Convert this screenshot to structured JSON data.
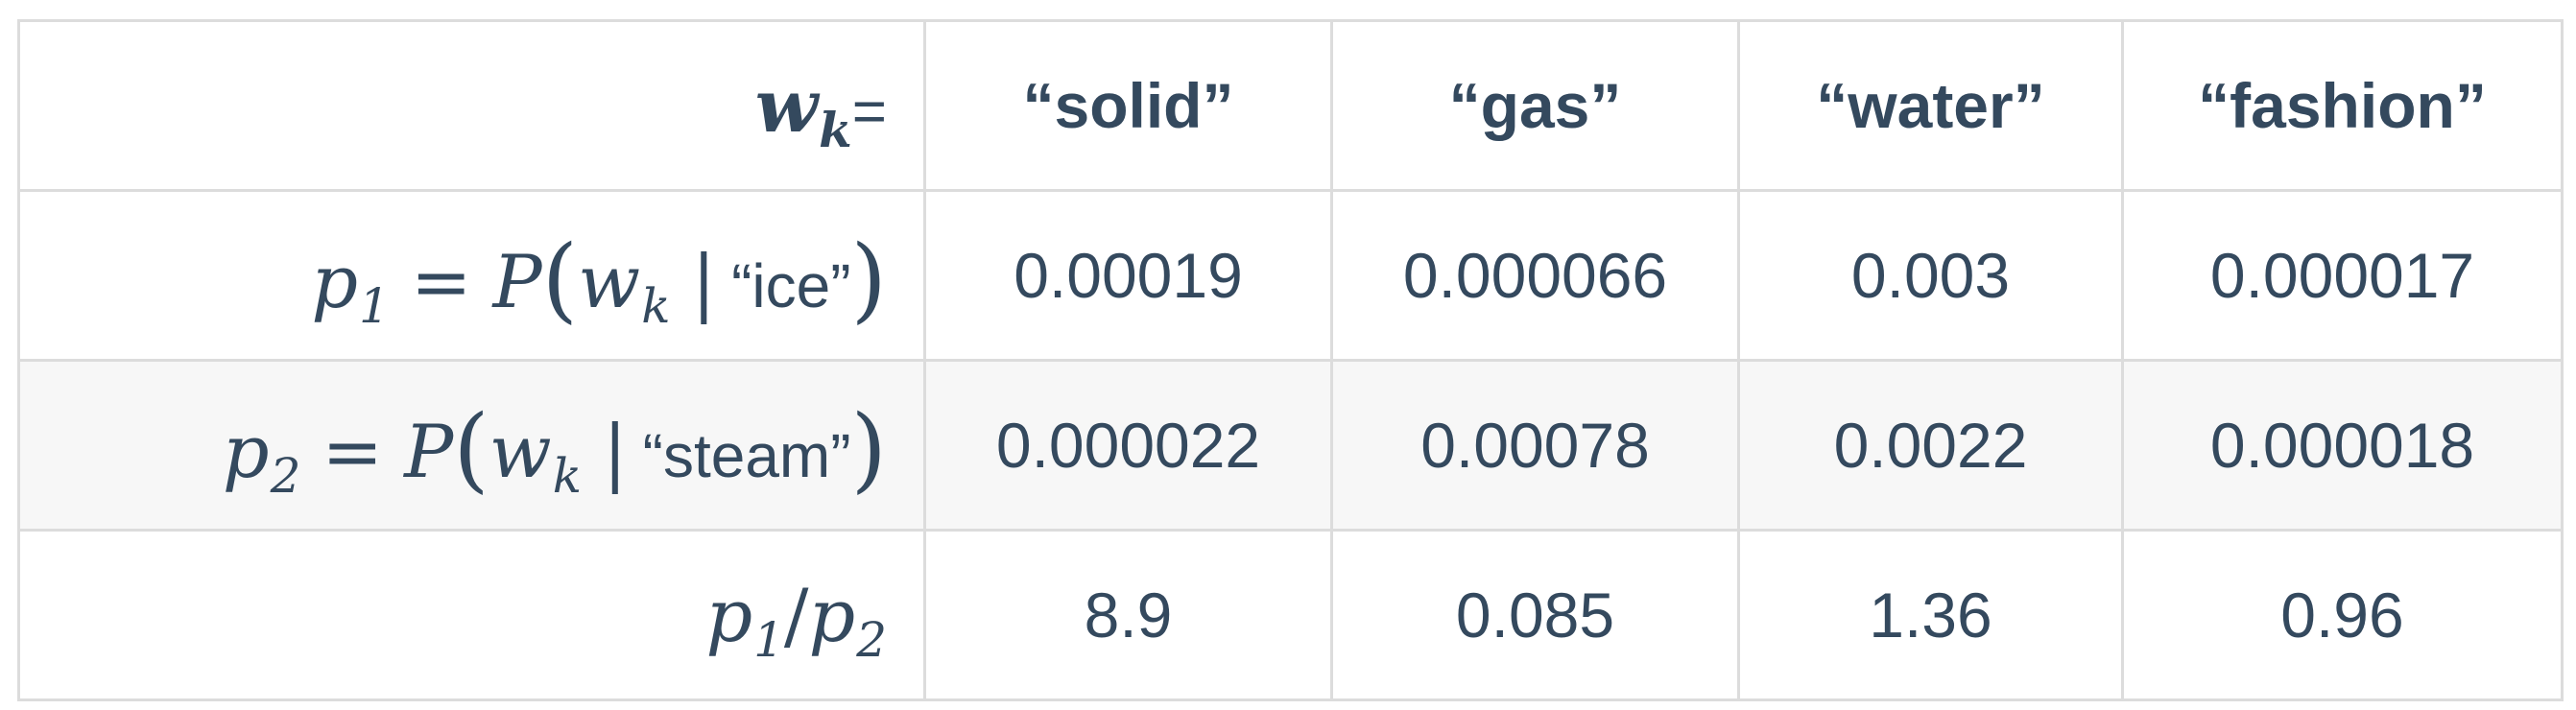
{
  "table": {
    "header": {
      "var": "w",
      "sub": "k",
      "eq": "=",
      "cols": [
        "“solid”",
        "“gas”",
        "“water”",
        "“fashion”"
      ]
    },
    "row1": {
      "label": {
        "p": "p",
        "psub": "1",
        "P": "P",
        "w": "w",
        "wsub": "k",
        "given": "“ice”"
      },
      "values": [
        "0.00019",
        "0.000066",
        "0.003",
        "0.000017"
      ]
    },
    "row2": {
      "label": {
        "p": "p",
        "psub": "2",
        "P": "P",
        "w": "w",
        "wsub": "k",
        "given": "“steam”"
      },
      "values": [
        "0.000022",
        "0.00078",
        "0.0022",
        "0.000018"
      ]
    },
    "row3": {
      "label": {
        "p1": "p",
        "p1sub": "1",
        "slash": "/",
        "p2": "p",
        "p2sub": "2"
      },
      "values": [
        "8.9",
        "0.085",
        "1.36",
        "0.96"
      ]
    }
  }
}
